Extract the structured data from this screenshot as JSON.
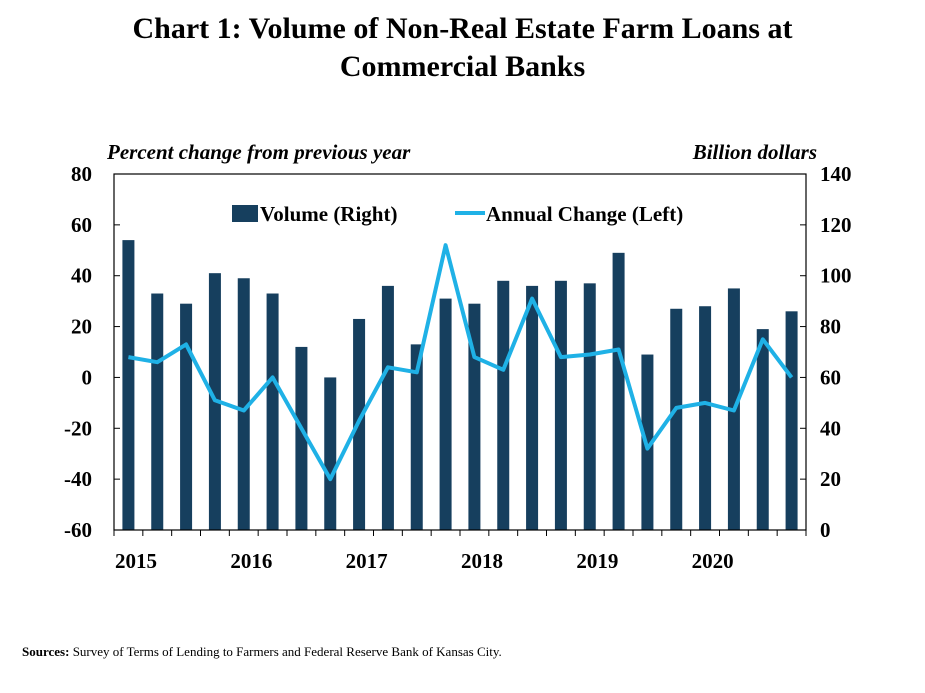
{
  "title_lines": [
    "Chart 1: Volume of Non-Real Estate Farm Loans at",
    "Commercial  Banks"
  ],
  "left_axis_note": "Percent change from previous year",
  "right_axis_note": "Billion dollars",
  "sources_label": "Sources:",
  "sources_text": "Survey of Terms of Lending to Farmers and Federal Reserve Bank of Kansas City.",
  "colors": {
    "bar": "#163f5e",
    "line": "#1fb1e6",
    "axis": "#000000"
  },
  "chart_data": {
    "type": "bar",
    "x_tick_labels": [
      "2015",
      "2016",
      "2017",
      "2018",
      "2019",
      "2020"
    ],
    "quarters_per_year": 4,
    "legend": {
      "position": "top-center",
      "entries": [
        "Volume (Right)",
        "Annual Change (Left)"
      ]
    },
    "y_left": {
      "min": -60,
      "max": 80,
      "step": 20,
      "ticks": [
        "80",
        "60",
        "40",
        "20",
        "0",
        "-20",
        "-40",
        "-60"
      ]
    },
    "y_right": {
      "min": 0,
      "max": 140,
      "step": 20,
      "ticks": [
        "140",
        "120",
        "100",
        "80",
        "60",
        "40",
        "20",
        "0"
      ]
    },
    "series": [
      {
        "name": "Volume (Right)",
        "type": "bar",
        "axis": "right",
        "values": [
          114,
          93,
          89,
          101,
          99,
          93,
          72,
          60,
          83,
          96,
          73,
          91,
          89,
          98,
          96,
          98,
          97,
          109,
          69,
          87,
          88,
          95,
          79,
          86
        ]
      },
      {
        "name": "Annual Change (Left)",
        "type": "line",
        "axis": "left",
        "values": [
          8,
          6,
          13,
          -9,
          -13,
          0,
          -20,
          -40,
          -17,
          4,
          2,
          52,
          8,
          3,
          31,
          8,
          9,
          11,
          -28,
          -12,
          -10,
          -13,
          15,
          0
        ]
      }
    ],
    "grid": false
  }
}
